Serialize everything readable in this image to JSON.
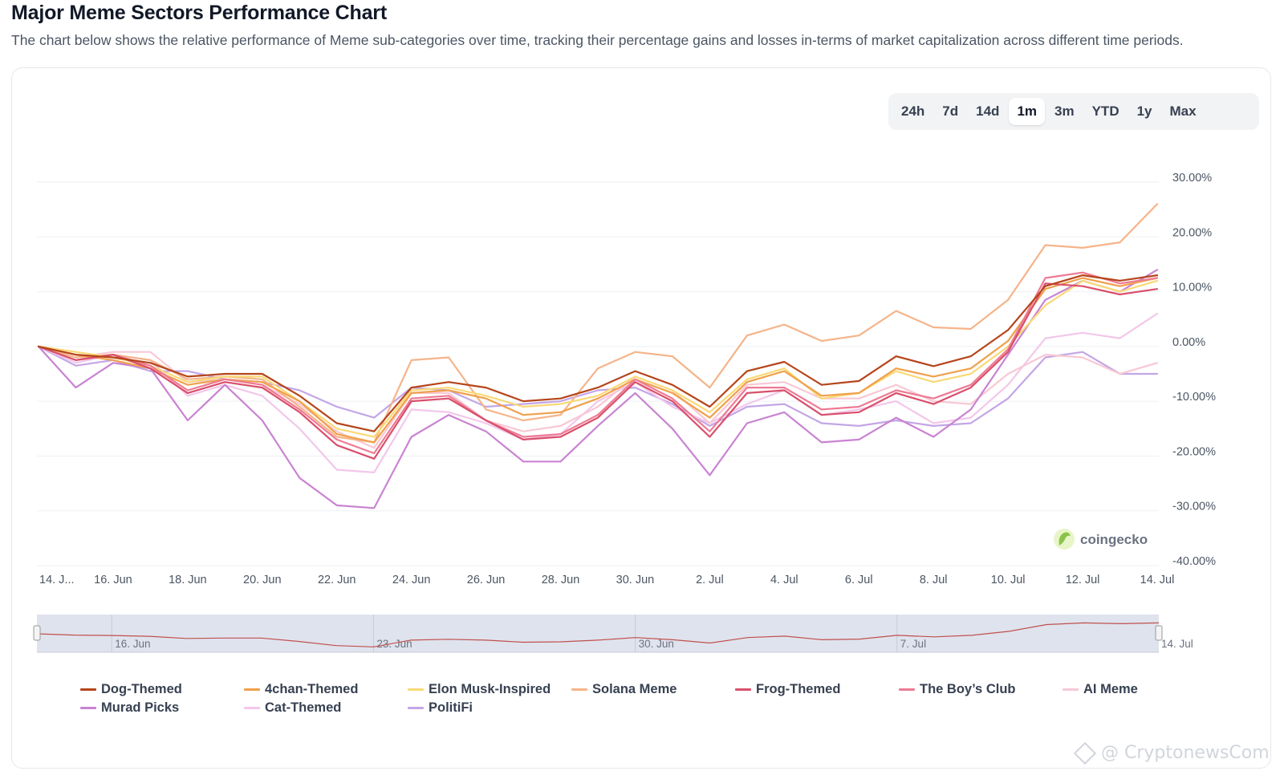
{
  "page": {
    "title": "Major Meme Sectors Performance Chart",
    "subtitle": "The chart below shows the relative performance of Meme sub-categories over time, tracking their percentage gains and losses in-terms of market capitalization across different time periods."
  },
  "range_selector": {
    "options": [
      "24h",
      "7d",
      "14d",
      "1m",
      "3m",
      "YTD",
      "1y",
      "Max"
    ],
    "selected": "1m"
  },
  "brand": {
    "name": "coingecko",
    "icon": "gecko-icon"
  },
  "watermark": {
    "text": "@ CryptonewsCom",
    "icon": "diamond-icon"
  },
  "navigator": {
    "labels": [
      "16. Jun",
      "23. Jun",
      "30. Jun",
      "7. Jul",
      "14. Jul"
    ],
    "label_days": [
      2,
      9,
      16,
      23,
      30
    ]
  },
  "chart_data": {
    "type": "line",
    "title": "",
    "xlabel": "",
    "ylabel": "",
    "y_unit": "%",
    "ylim": [
      -40,
      30
    ],
    "yticks": [
      30,
      20,
      10,
      0,
      -10,
      -20,
      -30,
      -40
    ],
    "ytick_labels": [
      "30.00%",
      "20.00%",
      "10.00%",
      "0.00%",
      "-10.00%",
      "-20.00%",
      "-30.00%",
      "-40.00%"
    ],
    "x_start_label": "14. J...",
    "x_ticks": [
      "16. Jun",
      "18. Jun",
      "20. Jun",
      "22. Jun",
      "24. Jun",
      "26. Jun",
      "28. Jun",
      "30. Jun",
      "2. Jul",
      "4. Jul",
      "6. Jul",
      "8. Jul",
      "10. Jul",
      "12. Jul",
      "14. Jul"
    ],
    "x_tick_days": [
      2,
      4,
      6,
      8,
      10,
      12,
      14,
      16,
      18,
      20,
      22,
      24,
      26,
      28,
      30
    ],
    "x": [
      0,
      1,
      2,
      3,
      4,
      5,
      6,
      7,
      8,
      9,
      10,
      11,
      12,
      13,
      14,
      15,
      16,
      17,
      18,
      19,
      20,
      21,
      22,
      23,
      24,
      25,
      26,
      27,
      28,
      29,
      30
    ],
    "grid": true,
    "legend_position": "bottom",
    "series": [
      {
        "name": "Dog-Themed",
        "color": "#b5451b",
        "values": [
          0,
          -1.5,
          -2,
          -3,
          -5.5,
          -5,
          -5,
          -9,
          -14,
          -15.5,
          -7.5,
          -6.5,
          -7.5,
          -10,
          -9.5,
          -7.5,
          -4.5,
          -7,
          -11,
          -4.5,
          -2.8,
          -7,
          -6.3,
          -1.8,
          -3.6,
          -1.8,
          3,
          11,
          13,
          12,
          13
        ]
      },
      {
        "name": "4chan-Themed",
        "color": "#f0a04b",
        "values": [
          0,
          -1.5,
          -2.5,
          -4,
          -7,
          -6,
          -6.5,
          -10,
          -16,
          -17.5,
          -8.5,
          -8,
          -9.5,
          -12.5,
          -12,
          -9.5,
          -6,
          -8.5,
          -13,
          -6.5,
          -4.5,
          -9,
          -8.5,
          -4,
          -5.5,
          -4,
          1,
          10.5,
          12.5,
          11,
          12.5
        ]
      },
      {
        "name": "Elon Musk-Inspired",
        "color": "#f9d976",
        "values": [
          0,
          -1,
          -2,
          -3.5,
          -6.5,
          -5.5,
          -5.5,
          -10,
          -15,
          -16.5,
          -8,
          -7.5,
          -9,
          -11,
          -10.5,
          -9,
          -5.5,
          -8,
          -12,
          -6,
          -4,
          -9.5,
          -8.5,
          -4.5,
          -6.5,
          -5,
          0,
          7.5,
          12,
          10,
          12
        ]
      },
      {
        "name": "Solana Meme",
        "color": "#f5b48a",
        "values": [
          0,
          -2,
          -1.5,
          -2.5,
          -6,
          -5.5,
          -6,
          -11,
          -16.5,
          -17.5,
          -2.5,
          -2,
          -11.5,
          -13.5,
          -12.5,
          -4,
          -1,
          -1.8,
          -7.5,
          2,
          4,
          1,
          2,
          6.5,
          3.5,
          3.2,
          8.5,
          18.5,
          18,
          19,
          26
        ]
      },
      {
        "name": "Frog-Themed",
        "color": "#d94f6b",
        "values": [
          0,
          -2.5,
          -1.5,
          -4,
          -8.5,
          -6.5,
          -7.5,
          -12,
          -18,
          -20.5,
          -10,
          -9.5,
          -13.5,
          -17,
          -16.5,
          -13,
          -6.5,
          -10,
          -16.5,
          -8.5,
          -8,
          -12.5,
          -12,
          -8.5,
          -10.5,
          -7.5,
          -1,
          11.5,
          11,
          9.5,
          10.5
        ]
      },
      {
        "name": "The Boy’s Club",
        "color": "#ee7a93",
        "values": [
          0,
          -2.5,
          -1.5,
          -3.5,
          -8,
          -6,
          -7,
          -11.5,
          -17,
          -19.5,
          -9.5,
          -9,
          -13.5,
          -16.5,
          -16,
          -12.5,
          -6,
          -9.5,
          -15.5,
          -7.5,
          -7.5,
          -11.5,
          -11,
          -8,
          -9.5,
          -7,
          -0.5,
          12.5,
          13.5,
          11.5,
          12.5
        ]
      },
      {
        "name": "AI Meme",
        "color": "#f8c8d4",
        "values": [
          0,
          -2,
          -1,
          -1,
          -6.5,
          -6,
          -7,
          -10.5,
          -15.5,
          -18.5,
          -8.5,
          -8.5,
          -13.5,
          -15.5,
          -14.5,
          -11,
          -5.5,
          -8,
          -14,
          -7,
          -6.5,
          -9.5,
          -9.5,
          -7,
          -10,
          -10.5,
          -5,
          -1.5,
          -2,
          -5,
          -3
        ]
      },
      {
        "name": "Murad Picks",
        "color": "#c983d2",
        "values": [
          0,
          -7.5,
          -3,
          -4,
          -13.5,
          -7,
          -13.5,
          -24,
          -29,
          -29.5,
          -16.5,
          -12.5,
          -15.5,
          -21,
          -21,
          -14.5,
          -8.5,
          -15,
          -23.5,
          -14,
          -12,
          -17.5,
          -17,
          -13,
          -16.5,
          -11.5,
          -1.5,
          8.5,
          12,
          10,
          14
        ]
      },
      {
        "name": "Cat-Themed",
        "color": "#f2c7ea",
        "values": [
          0,
          -3,
          -1.5,
          -2.5,
          -9,
          -7,
          -9,
          -15,
          -22.5,
          -23,
          -11.5,
          -12,
          -14,
          -17,
          -16,
          -10,
          -6.5,
          -11,
          -14,
          -10.5,
          -8,
          -12.5,
          -11.5,
          -10,
          -14,
          -13,
          -7,
          1.5,
          2.5,
          1.5,
          6
        ]
      },
      {
        "name": "PolitiFi",
        "color": "#c3a6e6",
        "values": [
          0,
          -3.5,
          -2.5,
          -4.5,
          -4.5,
          -6,
          -6.5,
          -8,
          -11,
          -13,
          -7.5,
          -8,
          -11,
          -10.5,
          -10,
          -8,
          -7.5,
          -10.5,
          -14.5,
          -11,
          -10.5,
          -14,
          -14.5,
          -13.5,
          -14.5,
          -14,
          -9.5,
          -2,
          -1,
          -5,
          -5
        ]
      }
    ]
  }
}
